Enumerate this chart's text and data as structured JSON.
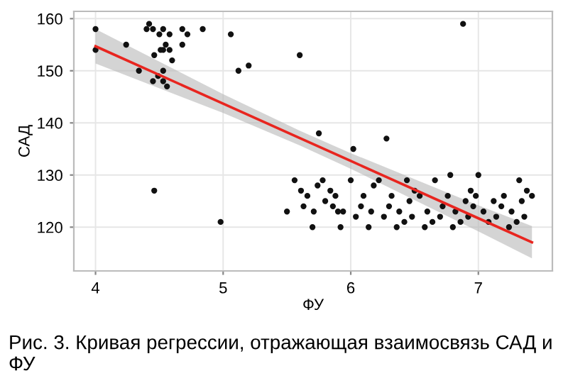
{
  "chart_data": {
    "type": "scatter",
    "xlabel": "ФУ",
    "ylabel": "САД",
    "xlim": [
      3.83,
      7.58
    ],
    "ylim": [
      111.6,
      161.4
    ],
    "xticks": [
      4,
      5,
      6,
      7
    ],
    "yticks": [
      120,
      130,
      140,
      150,
      160
    ],
    "grid": true,
    "legend": false,
    "marker": "circle",
    "annotations": [
      "Рис. 3. Кривая регрессии, отражающая взаимосвязь САД и ФУ"
    ],
    "series": [
      {
        "color": "#111111",
        "x": [
          4.0,
          4.0,
          4.24,
          4.34,
          4.42,
          4.4,
          4.45,
          4.46,
          4.45,
          4.49,
          4.5,
          4.51,
          4.53,
          4.53,
          4.53,
          4.53,
          4.55,
          4.56,
          4.58,
          4.58,
          4.6,
          4.68,
          4.68,
          4.72,
          4.84,
          4.46,
          4.98,
          5.06,
          5.12,
          5.2,
          5.6,
          6.88,
          5.75,
          6.28,
          6.02,
          5.56,
          5.61,
          5.63,
          5.66,
          5.5,
          5.7,
          5.71,
          5.74,
          5.78,
          5.8,
          5.84,
          5.86,
          5.88,
          5.9,
          5.92,
          5.94,
          6.0,
          6.04,
          6.08,
          6.1,
          6.14,
          6.16,
          6.18,
          6.22,
          6.26,
          6.3,
          6.32,
          6.36,
          6.38,
          6.42,
          6.44,
          6.46,
          6.48,
          6.5,
          6.54,
          6.58,
          6.6,
          6.64,
          6.66,
          6.7,
          6.72,
          6.76,
          6.78,
          6.8,
          6.82,
          6.86,
          6.9,
          6.92,
          6.94,
          6.96,
          6.98,
          7.0,
          7.04,
          7.08,
          7.12,
          7.14,
          7.18,
          7.2,
          7.24,
          7.26,
          7.3,
          7.32,
          7.34,
          7.36,
          7.38,
          7.42
        ],
        "values": [
          158,
          154,
          155,
          150,
          159,
          158,
          158,
          153,
          148,
          149,
          157,
          154,
          158,
          154,
          150,
          148,
          155,
          147,
          157,
          154,
          152,
          158,
          155,
          157,
          158,
          127,
          121,
          157,
          150,
          151,
          153,
          159,
          138,
          137,
          135,
          129,
          127,
          124,
          126,
          123,
          120,
          123,
          128,
          129,
          125,
          127,
          124,
          126,
          123,
          120,
          123,
          129,
          122,
          124,
          126,
          120,
          123,
          128,
          129,
          122,
          124,
          126,
          120,
          123,
          121,
          129,
          125,
          122,
          127,
          126,
          120,
          123,
          121,
          129,
          122,
          124,
          126,
          130,
          120,
          123,
          121,
          125,
          122,
          127,
          124,
          126,
          130,
          123,
          121,
          125,
          122,
          124,
          126,
          120,
          123,
          121,
          129,
          125,
          122,
          127,
          126
        ]
      },
      {
        "type": "line",
        "color": "#e8251f",
        "line_style": "solid",
        "marker": "none",
        "x": [
          4.0,
          5.0,
          5.6,
          6.0,
          7.0,
          7.42
        ],
        "values": [
          154.7,
          143.7,
          137.1,
          132.7,
          121.7,
          117.1
        ],
        "lower": [
          151.4,
          141.9,
          135.7,
          131.2,
          119.2,
          114.0
        ],
        "upper": [
          158.0,
          145.5,
          138.5,
          134.2,
          124.2,
          120.2
        ]
      }
    ]
  }
}
